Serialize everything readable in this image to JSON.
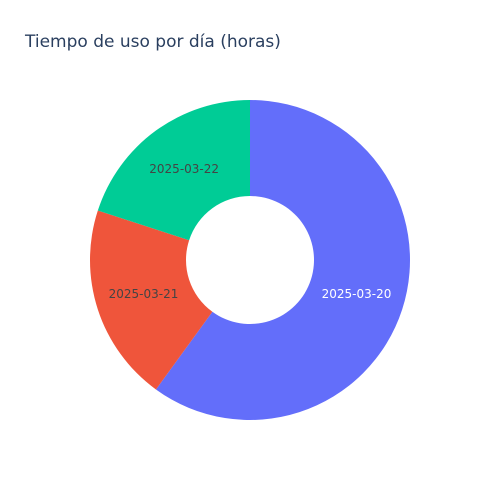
{
  "chart_data": {
    "type": "pie",
    "title": "Tiempo de uso por día (horas)",
    "hole": 0.4,
    "direction": "clockwise",
    "start_angle_deg": 0,
    "labels": [
      "2025-03-20",
      "2025-03-21",
      "2025-03-22"
    ],
    "values": [
      6.0,
      2.0,
      2.0
    ],
    "colors": [
      "#636efa",
      "#ef553b",
      "#00cc96"
    ],
    "label_colors": [
      "#ffffff",
      "#444444",
      "#444444"
    ]
  }
}
